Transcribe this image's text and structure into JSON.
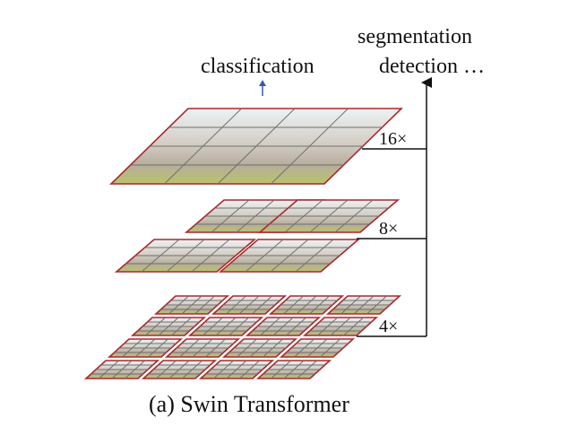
{
  "labels": {
    "top_left": "classification",
    "top_right_line1": "segmentation",
    "top_right_line2": "detection …",
    "scale_top": "16×",
    "scale_mid": "8×",
    "scale_bottom": "4×",
    "caption": "(a) Swin Transformer"
  },
  "colors": {
    "patch_border": "#a8282c",
    "grid_line": "#6f6f6f",
    "arrow_blue": "#3a5ba8",
    "line_black": "#111111",
    "foliage": "#b9c26a",
    "building": "#b7ad9c",
    "sky": "#eef2f5"
  },
  "stages": [
    {
      "name": "stage-16x",
      "windows": 1,
      "cells_per_window": 4
    },
    {
      "name": "stage-8x",
      "windows": 4,
      "cells_per_window": 4
    },
    {
      "name": "stage-4x",
      "windows": 16,
      "cells_per_window": 4
    }
  ]
}
